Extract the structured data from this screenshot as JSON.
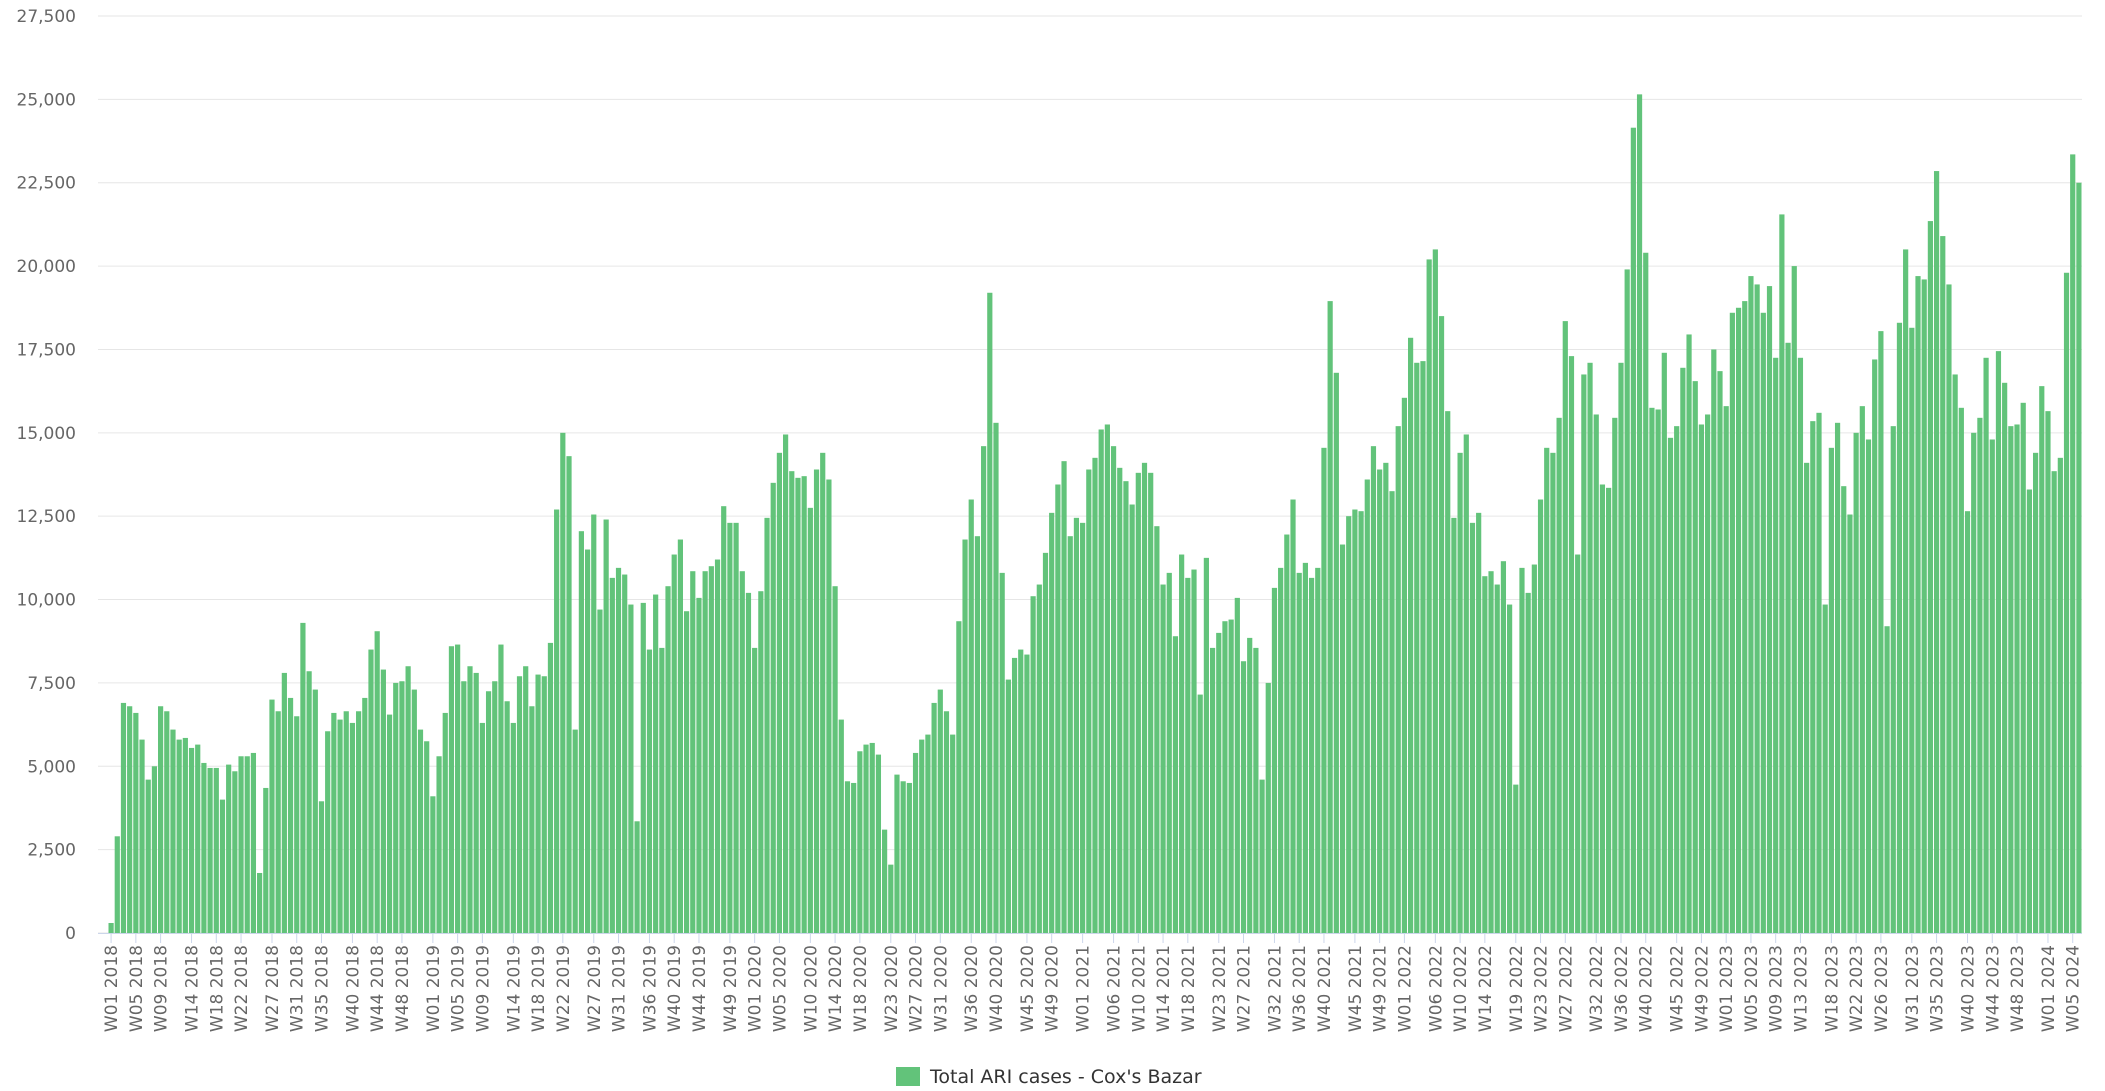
{
  "chart_data": {
    "type": "bar",
    "categories": [
      "W01 2018",
      null,
      null,
      null,
      "W05 2018",
      null,
      null,
      null,
      "W09 2018",
      null,
      null,
      null,
      null,
      "W14 2018",
      null,
      null,
      null,
      "W18 2018",
      null,
      null,
      null,
      "W22 2018",
      null,
      null,
      null,
      null,
      "W27 2018",
      null,
      null,
      null,
      "W31 2018",
      null,
      null,
      null,
      "W35 2018",
      null,
      null,
      null,
      null,
      "W40 2018",
      null,
      null,
      null,
      "W44 2018",
      null,
      null,
      null,
      "W48 2018",
      null,
      null,
      null,
      null,
      "W01 2019",
      null,
      null,
      null,
      "W05 2019",
      null,
      null,
      null,
      "W09 2019",
      null,
      null,
      null,
      null,
      "W14 2019",
      null,
      null,
      null,
      "W18 2019",
      null,
      null,
      null,
      "W22 2019",
      null,
      null,
      null,
      null,
      "W27 2019",
      null,
      null,
      null,
      "W31 2019",
      null,
      null,
      null,
      null,
      "W36 2019",
      null,
      null,
      null,
      "W40 2019",
      null,
      null,
      null,
      "W44 2019",
      null,
      null,
      null,
      null,
      "W49 2019",
      null,
      null,
      null,
      "W01 2020",
      null,
      null,
      null,
      "W05 2020",
      null,
      null,
      null,
      null,
      "W10 2020",
      null,
      null,
      null,
      "W14 2020",
      null,
      null,
      null,
      "W18 2020",
      null,
      null,
      null,
      null,
      "W23 2020",
      null,
      null,
      null,
      "W27 2020",
      null,
      null,
      null,
      "W31 2020",
      null,
      null,
      null,
      null,
      "W36 2020",
      null,
      null,
      null,
      "W40 2020",
      null,
      null,
      null,
      null,
      "W45 2020",
      null,
      null,
      null,
      "W49 2020",
      null,
      null,
      null,
      null,
      "W01 2021",
      null,
      null,
      null,
      null,
      "W06 2021",
      null,
      null,
      null,
      "W10 2021",
      null,
      null,
      null,
      "W14 2021",
      null,
      null,
      null,
      "W18 2021",
      null,
      null,
      null,
      null,
      "W23 2021",
      null,
      null,
      null,
      "W27 2021",
      null,
      null,
      null,
      null,
      "W32 2021",
      null,
      null,
      null,
      "W36 2021",
      null,
      null,
      null,
      "W40 2021",
      null,
      null,
      null,
      null,
      "W45 2021",
      null,
      null,
      null,
      "W49 2021",
      null,
      null,
      null,
      "W01 2022",
      null,
      null,
      null,
      null,
      "W06 2022",
      null,
      null,
      null,
      "W10 2022",
      null,
      null,
      null,
      "W14 2022",
      null,
      null,
      null,
      null,
      "W19 2022",
      null,
      null,
      null,
      "W23 2022",
      null,
      null,
      null,
      "W27 2022",
      null,
      null,
      null,
      null,
      "W32 2022",
      null,
      null,
      null,
      "W36 2022",
      null,
      null,
      null,
      "W40 2022",
      null,
      null,
      null,
      null,
      "W45 2022",
      null,
      null,
      null,
      "W49 2022",
      null,
      null,
      null,
      "W01 2023",
      null,
      null,
      null,
      "W05 2023",
      null,
      null,
      null,
      "W09 2023",
      null,
      null,
      null,
      "W13 2023",
      null,
      null,
      null,
      null,
      "W18 2023",
      null,
      null,
      null,
      "W22 2023",
      null,
      null,
      null,
      "W26 2023",
      null,
      null,
      null,
      null,
      "W31 2023",
      null,
      null,
      null,
      "W35 2023",
      null,
      null,
      null,
      null,
      "W40 2023",
      null,
      null,
      null,
      "W44 2023",
      null,
      null,
      null,
      "W48 2023",
      null,
      null,
      null,
      null,
      "W01 2024",
      null,
      null,
      null,
      "W05 2024",
      null
    ],
    "series": [
      {
        "name": "Total ARI cases - Cox's Bazar",
        "color": "#62c37a",
        "values": [
          300,
          2900,
          6900,
          6800,
          6600,
          5800,
          4600,
          5000,
          6800,
          6650,
          6100,
          5800,
          5850,
          5550,
          5650,
          5100,
          4950,
          4950,
          4000,
          5050,
          4850,
          5300,
          5300,
          5400,
          1800,
          4350,
          7000,
          6650,
          7800,
          7050,
          6500,
          9300,
          7850,
          7300,
          3950,
          6050,
          6600,
          6400,
          6650,
          6300,
          6650,
          7050,
          8500,
          9050,
          7900,
          6550,
          7500,
          7550,
          8000,
          7300,
          6100,
          5750,
          4100,
          5300,
          6600,
          8600,
          8650,
          7550,
          8000,
          7800,
          6300,
          7250,
          7550,
          8650,
          6950,
          6300,
          7700,
          8000,
          6800,
          7750,
          7700,
          8700,
          12700,
          15000,
          14300,
          6100,
          12050,
          11500,
          12550,
          9700,
          12400,
          10650,
          10950,
          10750,
          9850,
          3350,
          9900,
          8500,
          10150,
          8550,
          10400,
          11350,
          11800,
          9650,
          10850,
          10050,
          10850,
          11000,
          11200,
          12800,
          12300,
          12300,
          10850,
          10200,
          8550,
          10250,
          12450,
          13500,
          14400,
          14950,
          13850,
          13650,
          13700,
          12750,
          13900,
          14400,
          13600,
          10400,
          6400,
          4550,
          4500,
          5450,
          5650,
          5700,
          5350,
          3100,
          2050,
          4750,
          4550,
          4500,
          5400,
          5800,
          5950,
          6900,
          7300,
          6650,
          5950,
          9350,
          11800,
          13000,
          11900,
          14600,
          19200,
          15300,
          10800,
          7600,
          8250,
          8500,
          8350,
          10100,
          10450,
          11400,
          12600,
          13450,
          14150,
          11900,
          12450,
          12300,
          13900,
          14250,
          15100,
          15250,
          14600,
          13950,
          13550,
          12850,
          13800,
          14100,
          13800,
          12200,
          10450,
          10800,
          8900,
          11350,
          10650,
          10900,
          7150,
          11250,
          8550,
          9000,
          9350,
          9400,
          10050,
          8150,
          8850,
          8550,
          4600,
          7500,
          10350,
          10950,
          11950,
          13000,
          10800,
          11100,
          10650,
          10950,
          14550,
          18950,
          16800,
          11650,
          12500,
          12700,
          12650,
          13600,
          14600,
          13900,
          14100,
          13250,
          15200,
          16050,
          17850,
          17100,
          17150,
          20200,
          20500,
          18500,
          15650,
          12450,
          14400,
          14950,
          12300,
          12600,
          10700,
          10850,
          10450,
          11150,
          9850,
          4450,
          10950,
          10200,
          11050,
          13000,
          14550,
          14400,
          15450,
          18350,
          17300,
          11350,
          16750,
          17100,
          15550,
          13450,
          13350,
          15450,
          17100,
          19900,
          24150,
          25150,
          20400,
          15750,
          15700,
          17400,
          14850,
          15200,
          16950,
          17950,
          16550,
          15250,
          15550,
          17500,
          16850,
          15800,
          18600,
          18750,
          18950,
          19700,
          19450,
          18600,
          19400,
          17250,
          21550,
          17700,
          20000,
          17250,
          14100,
          15350,
          15600,
          9850,
          14550,
          15300,
          13400,
          12550,
          15000,
          15800,
          14800,
          17200,
          18050,
          9200,
          15200,
          18300,
          20500,
          18150,
          19700,
          19600,
          21350,
          22850,
          20900,
          19450,
          16750,
          15750,
          12650,
          15000,
          15450,
          17250,
          14800,
          17450,
          16500,
          15200,
          15250,
          15900,
          13300,
          14400,
          16400,
          15650,
          13850,
          14250,
          19800,
          23350,
          22500
        ]
      }
    ],
    "ylim": [
      0,
      27500
    ],
    "yticks": [
      0,
      {
        "value": 2500,
        "label": "2,500"
      },
      {
        "value": 5000,
        "label": "5,000"
      },
      {
        "value": 7500,
        "label": "7,500"
      },
      {
        "value": 10000,
        "label": "10,000"
      },
      {
        "value": 12500,
        "label": "12,500"
      },
      {
        "value": 15000,
        "label": "15,000"
      },
      {
        "value": 17500,
        "label": "17,500"
      },
      {
        "value": 20000,
        "label": "20,000"
      },
      {
        "value": 22500,
        "label": "22,500"
      },
      {
        "value": 25000,
        "label": "25,000"
      },
      {
        "value": 27500,
        "label": "27,500"
      }
    ],
    "grid": true,
    "legend": "bottom"
  }
}
